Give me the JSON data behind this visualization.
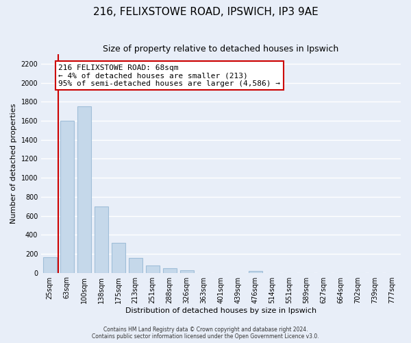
{
  "title": "216, FELIXSTOWE ROAD, IPSWICH, IP3 9AE",
  "subtitle": "Size of property relative to detached houses in Ipswich",
  "xlabel": "Distribution of detached houses by size in Ipswich",
  "ylabel": "Number of detached properties",
  "bar_labels": [
    "25sqm",
    "63sqm",
    "100sqm",
    "138sqm",
    "175sqm",
    "213sqm",
    "251sqm",
    "288sqm",
    "326sqm",
    "363sqm",
    "401sqm",
    "439sqm",
    "476sqm",
    "514sqm",
    "551sqm",
    "589sqm",
    "627sqm",
    "664sqm",
    "702sqm",
    "739sqm",
    "777sqm"
  ],
  "bar_values": [
    160,
    1600,
    1750,
    700,
    315,
    155,
    80,
    45,
    25,
    0,
    0,
    0,
    20,
    0,
    0,
    0,
    0,
    0,
    0,
    0,
    0
  ],
  "bar_color": "#c5d8ea",
  "bar_edge_color": "#a0bed8",
  "vline_x": 0.5,
  "vline_color": "#cc0000",
  "annotation_title": "216 FELIXSTOWE ROAD: 68sqm",
  "annotation_line1": "← 4% of detached houses are smaller (213)",
  "annotation_line2": "95% of semi-detached houses are larger (4,586) →",
  "annotation_box_facecolor": "#ffffff",
  "annotation_box_edgecolor": "#cc0000",
  "ylim": [
    0,
    2300
  ],
  "yticks": [
    0,
    200,
    400,
    600,
    800,
    1000,
    1200,
    1400,
    1600,
    1800,
    2000,
    2200
  ],
  "footer1": "Contains HM Land Registry data © Crown copyright and database right 2024.",
  "footer2": "Contains public sector information licensed under the Open Government Licence v3.0.",
  "fig_bg_color": "#e8eef8",
  "plot_bg_color": "#e8eef8",
  "grid_color": "#ffffff",
  "title_fontsize": 11,
  "subtitle_fontsize": 9,
  "axis_label_fontsize": 8,
  "tick_fontsize": 7,
  "annotation_fontsize": 8,
  "footer_fontsize": 5.5
}
